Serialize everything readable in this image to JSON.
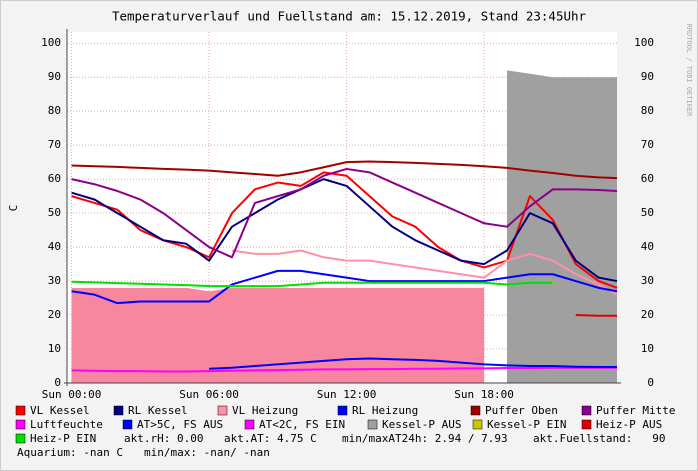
{
  "chart_data": {
    "type": "line",
    "title": "Temperaturverlauf und Fuellstand am: 15.12.2019, Stand 23:45Uhr",
    "y_label": "C",
    "side_label": "RRDTOOL / TOBI OETIKER",
    "x": [
      0,
      1,
      2,
      3,
      4,
      5,
      6,
      7,
      8,
      9,
      10,
      11,
      12,
      13,
      14,
      15,
      16,
      17,
      18,
      19,
      20,
      21,
      22,
      23,
      23.8
    ],
    "xlim": [
      -0.2,
      23.8
    ],
    "xticks": [
      {
        "value": 0,
        "label": "Sun 00:00"
      },
      {
        "value": 6,
        "label": "Sun 06:00"
      },
      {
        "value": 12,
        "label": "Sun 12:00"
      },
      {
        "value": 18,
        "label": "Sun 18:00"
      }
    ],
    "ylim": [
      0,
      103.3
    ],
    "yticks": [
      0,
      10,
      20,
      30,
      40,
      50,
      60,
      70,
      80,
      90,
      100
    ],
    "grid": true,
    "fills": [
      {
        "color": "#f7879f",
        "values": [
          28,
          28,
          28,
          28,
          28,
          28,
          27,
          28,
          28,
          28,
          28,
          28,
          28,
          28,
          28,
          28,
          28,
          28,
          28,
          null,
          null,
          null,
          null,
          null,
          null
        ]
      }
    ],
    "series": [
      {
        "name": "VL Kessel",
        "color": "#ff0000",
        "values": [
          55,
          53,
          51,
          45,
          42,
          40,
          37,
          50,
          57,
          59,
          58,
          62,
          61,
          55,
          49,
          46,
          40,
          36,
          34,
          36,
          55,
          48,
          35,
          30,
          28
        ]
      },
      {
        "name": "RL Kessel",
        "color": "#000080",
        "values": [
          56,
          54,
          50,
          46,
          42,
          41,
          36,
          46,
          50,
          54,
          57,
          60,
          58,
          52,
          46,
          42,
          39,
          36,
          35,
          39,
          50,
          47,
          36,
          31,
          30
        ]
      },
      {
        "name": "VL Heizung",
        "color": "#ff90a8",
        "values": [
          null,
          null,
          null,
          null,
          null,
          null,
          null,
          39,
          38,
          38,
          39,
          37,
          36,
          36,
          35,
          34,
          33,
          32,
          31,
          36,
          38,
          36,
          32,
          29,
          26
        ]
      },
      {
        "name": "RL Heizung",
        "color": "#0000ff",
        "values": [
          27,
          26,
          23.5,
          24,
          24,
          24,
          24,
          29,
          31,
          33,
          33,
          32,
          31,
          30,
          30,
          30,
          30,
          30,
          30,
          31,
          32,
          32,
          30,
          28,
          27
        ]
      },
      {
        "name": "Puffer Oben",
        "color": "#a00000",
        "values": [
          64,
          63.8,
          63.6,
          63.3,
          63,
          62.8,
          62.5,
          62,
          61.5,
          61,
          62,
          63.5,
          65,
          65.2,
          65,
          64.8,
          64.5,
          64.2,
          63.8,
          63.3,
          62.5,
          61.8,
          61,
          60.5,
          60.3
        ]
      },
      {
        "name": "Puffer Mitte",
        "color": "#8b008b",
        "values": [
          60,
          58.5,
          56.5,
          54,
          50,
          45,
          40,
          37,
          53,
          55,
          57,
          61,
          63,
          62,
          59,
          56,
          53,
          50,
          47,
          46,
          52,
          57,
          57,
          56.8,
          56.5
        ]
      },
      {
        "name": "Luftfeuchte",
        "color": "#ff00ff",
        "values": [
          3.7,
          3.6,
          3.5,
          3.5,
          3.4,
          3.4,
          3.5,
          3.6,
          3.7,
          3.8,
          3.9,
          4,
          4,
          4.1,
          4.1,
          4.2,
          4.2,
          4.3,
          4.3,
          4.4,
          4.4,
          4.5,
          4.5,
          4.5,
          4.5
        ]
      },
      {
        "name": "AT>5C, FS AUS",
        "color": "#0000ff",
        "values": [
          null,
          null,
          null,
          null,
          null,
          null,
          4.2,
          4.5,
          5,
          5.5,
          6,
          6.5,
          7,
          7.2,
          7,
          6.8,
          6.5,
          6,
          5.5,
          5.2,
          5,
          5,
          4.8,
          4.7,
          4.7
        ]
      },
      {
        "name": "AT<2C, FS EIN",
        "color": "#ff00ff",
        "values": [
          null,
          null,
          null,
          null,
          null,
          null,
          null,
          null,
          null,
          null,
          null,
          null,
          null,
          null,
          null,
          null,
          null,
          null,
          null,
          null,
          null,
          null,
          null,
          null,
          null
        ]
      },
      {
        "name": "Kessel-P AUS",
        "color": "#a0a0a0",
        "style": "area",
        "values": [
          null,
          null,
          null,
          null,
          null,
          null,
          null,
          null,
          null,
          null,
          null,
          null,
          null,
          null,
          null,
          null,
          null,
          null,
          null,
          92,
          91,
          90,
          90,
          90,
          90
        ]
      },
      {
        "name": "Kessel-P EIN",
        "color": "#c8c800",
        "values": [
          null,
          null,
          null,
          null,
          null,
          null,
          null,
          null,
          null,
          null,
          null,
          null,
          null,
          null,
          null,
          null,
          null,
          null,
          null,
          null,
          null,
          29.5,
          null,
          null,
          null
        ]
      },
      {
        "name": "Heiz-P AUS",
        "color": "#e00000",
        "values": [
          null,
          null,
          null,
          null,
          null,
          null,
          null,
          null,
          null,
          null,
          null,
          null,
          null,
          null,
          null,
          null,
          null,
          null,
          null,
          null,
          null,
          null,
          20,
          19.8,
          19.8
        ]
      },
      {
        "name": "Heiz-P EIN",
        "color": "#00e000",
        "values": [
          29.8,
          29.6,
          29.4,
          29.2,
          29,
          28.8,
          28.5,
          28.5,
          28.5,
          28.5,
          29,
          29.5,
          29.5,
          29.5,
          29.5,
          29.5,
          29.5,
          29.5,
          29.5,
          29,
          29.5,
          29.5,
          null,
          null,
          null
        ]
      }
    ],
    "notes": [
      "akt.rH: 0.00",
      "akt.AT: 4.75 C",
      "min/maxAT24h: 2.94 / 7.93",
      "akt.Fuellstand:   90",
      "Aquarium: -nan C",
      "min/max: -nan/ -nan"
    ]
  }
}
